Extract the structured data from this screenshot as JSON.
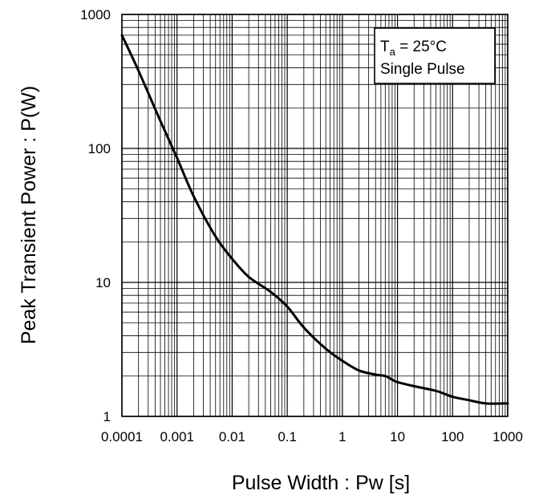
{
  "chart_data": {
    "type": "line",
    "title": "",
    "xlabel": "Pulse Width : Pw [s]",
    "ylabel": "Peak Transient Power : P(W)",
    "xscale": "log",
    "yscale": "log",
    "xlim": [
      0.0001,
      1000
    ],
    "ylim": [
      1,
      1000
    ],
    "grid": true,
    "x_tick_labels": [
      "0.0001",
      "0.001",
      "0.01",
      "0.1",
      "1",
      "10",
      "100",
      "1000"
    ],
    "y_tick_labels": [
      "1",
      "10",
      "100",
      "1000"
    ],
    "annotation": {
      "line1_main": "T",
      "line1_sub": "a",
      "line1_rest": " = 25°C",
      "line2": "Single Pulse",
      "placement": "top-right"
    },
    "series": [
      {
        "x": [
          0.0001,
          0.0002,
          0.0005,
          0.001,
          0.002,
          0.005,
          0.01,
          0.02,
          0.05,
          0.1,
          0.2,
          0.5,
          1,
          2,
          4,
          6,
          8,
          10,
          20,
          50,
          100,
          200,
          400,
          1000
        ],
        "y": [
          700,
          380,
          160,
          85,
          44,
          22,
          15,
          11,
          8.5,
          6.6,
          4.6,
          3.2,
          2.6,
          2.2,
          2.05,
          2.0,
          1.88,
          1.8,
          1.68,
          1.55,
          1.4,
          1.32,
          1.25,
          1.25
        ]
      }
    ],
    "line_color": "#000000",
    "grid_color": "#000000"
  }
}
